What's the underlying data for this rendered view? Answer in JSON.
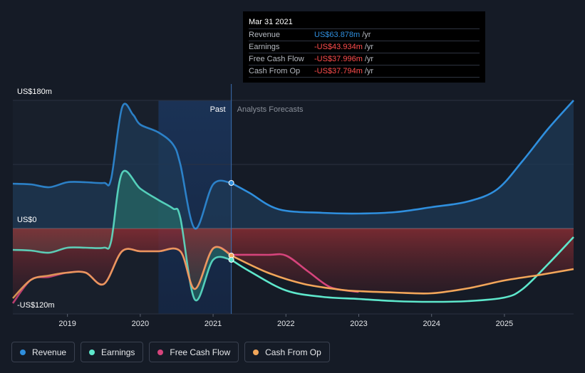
{
  "tooltip": {
    "date": "Mar 31 2021",
    "rows": [
      {
        "label": "Revenue",
        "value": "US$63.878m",
        "unit": "/yr",
        "color": "#2f8fde"
      },
      {
        "label": "Earnings",
        "value": "-US$43.934m",
        "unit": "/yr",
        "color": "#ff4d4d"
      },
      {
        "label": "Free Cash Flow",
        "value": "-US$37.996m",
        "unit": "/yr",
        "color": "#ff4d4d"
      },
      {
        "label": "Cash From Op",
        "value": "-US$37.794m",
        "unit": "/yr",
        "color": "#ff4d4d"
      }
    ]
  },
  "y_labels": {
    "top": "US$180m",
    "zero": "US$0",
    "bottom": "-US$120m"
  },
  "regions": {
    "past": "Past",
    "forecast": "Analysts Forecasts"
  },
  "legend": [
    {
      "label": "Revenue",
      "color": "#2f8fde"
    },
    {
      "label": "Earnings",
      "color": "#5ee8cc"
    },
    {
      "label": "Free Cash Flow",
      "color": "#d6447c"
    },
    {
      "label": "Cash From Op",
      "color": "#f2a65a"
    }
  ],
  "chart_data": {
    "type": "line",
    "ylim": [
      -120,
      180
    ],
    "xlim": [
      2018.25,
      2025.95
    ],
    "x_ticks": [
      "2019",
      "2020",
      "2021",
      "2022",
      "2023",
      "2024",
      "2025"
    ],
    "x_tick_values": [
      2019,
      2020,
      2021,
      2022,
      2023,
      2024,
      2025
    ],
    "past_end": 2021.25,
    "highlight_start": 2020.25,
    "series": [
      {
        "name": "Revenue",
        "color": "#2f8fde",
        "points": [
          [
            2018.25,
            63
          ],
          [
            2018.5,
            62
          ],
          [
            2018.75,
            58
          ],
          [
            2019.0,
            65
          ],
          [
            2019.25,
            65
          ],
          [
            2019.5,
            64
          ],
          [
            2019.6,
            70
          ],
          [
            2019.75,
            170
          ],
          [
            2019.9,
            160
          ],
          [
            2020.0,
            146
          ],
          [
            2020.25,
            135
          ],
          [
            2020.45,
            118
          ],
          [
            2020.55,
            90
          ],
          [
            2020.75,
            0
          ],
          [
            2021.0,
            62
          ],
          [
            2021.25,
            64
          ],
          [
            2021.5,
            50
          ],
          [
            2021.9,
            27
          ],
          [
            2022.5,
            22
          ],
          [
            2023.0,
            21
          ],
          [
            2023.5,
            23
          ],
          [
            2024.0,
            30
          ],
          [
            2024.5,
            38
          ],
          [
            2024.9,
            55
          ],
          [
            2025.25,
            95
          ],
          [
            2025.6,
            140
          ],
          [
            2025.95,
            180
          ]
        ]
      },
      {
        "name": "Earnings",
        "color": "#5ee8cc",
        "points": [
          [
            2018.25,
            -30
          ],
          [
            2018.5,
            -31
          ],
          [
            2018.75,
            -34
          ],
          [
            2019.0,
            -27
          ],
          [
            2019.25,
            -27
          ],
          [
            2019.5,
            -27
          ],
          [
            2019.6,
            -18
          ],
          [
            2019.75,
            78
          ],
          [
            2020.0,
            56
          ],
          [
            2020.25,
            40
          ],
          [
            2020.45,
            28
          ],
          [
            2020.55,
            15
          ],
          [
            2020.75,
            -100
          ],
          [
            2021.0,
            -44
          ],
          [
            2021.25,
            -44
          ],
          [
            2021.5,
            -60
          ],
          [
            2022.0,
            -87
          ],
          [
            2022.5,
            -96
          ],
          [
            2023.0,
            -99
          ],
          [
            2023.5,
            -102
          ],
          [
            2024.0,
            -103
          ],
          [
            2024.5,
            -102
          ],
          [
            2025.0,
            -97
          ],
          [
            2025.25,
            -85
          ],
          [
            2025.6,
            -50
          ],
          [
            2025.95,
            -12
          ]
        ]
      },
      {
        "name": "Free Cash Flow",
        "color": "#d6447c",
        "points": [
          [
            2018.25,
            -105
          ],
          [
            2018.5,
            -72
          ],
          [
            2018.75,
            -68
          ],
          [
            2019.0,
            -62
          ],
          [
            2019.25,
            -62
          ],
          [
            2019.5,
            -78
          ],
          [
            2019.75,
            -32
          ],
          [
            2020.0,
            -32
          ],
          [
            2020.25,
            -32
          ],
          [
            2020.55,
            -32
          ],
          [
            2020.75,
            -85
          ],
          [
            2021.0,
            -28
          ],
          [
            2021.25,
            -37
          ],
          [
            2021.75,
            -37
          ],
          [
            2022.0,
            -38
          ],
          [
            2022.3,
            -60
          ],
          [
            2022.6,
            -82
          ],
          [
            2022.9,
            -88
          ],
          [
            2023.0,
            -89
          ]
        ]
      },
      {
        "name": "Cash From Op",
        "color": "#f2a65a",
        "points": [
          [
            2018.25,
            -98
          ],
          [
            2018.5,
            -72
          ],
          [
            2018.75,
            -66
          ],
          [
            2019.0,
            -62
          ],
          [
            2019.25,
            -62
          ],
          [
            2019.5,
            -78
          ],
          [
            2019.75,
            -32
          ],
          [
            2020.0,
            -32
          ],
          [
            2020.25,
            -32
          ],
          [
            2020.55,
            -32
          ],
          [
            2020.75,
            -85
          ],
          [
            2021.0,
            -28
          ],
          [
            2021.25,
            -38
          ],
          [
            2021.75,
            -62
          ],
          [
            2022.25,
            -78
          ],
          [
            2022.75,
            -86
          ],
          [
            2023.0,
            -88
          ],
          [
            2023.5,
            -90
          ],
          [
            2024.0,
            -91
          ],
          [
            2024.5,
            -84
          ],
          [
            2025.0,
            -73
          ],
          [
            2025.5,
            -65
          ],
          [
            2025.95,
            -57
          ]
        ]
      }
    ]
  }
}
